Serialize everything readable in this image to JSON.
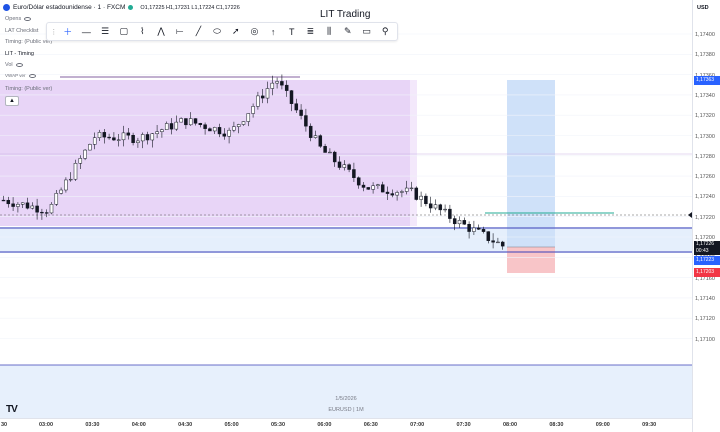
{
  "legend": {
    "symbol": "Euro/Dólar estadounidense · 1 · FXCM",
    "ohlc": "O1,17225 H1,17231 L1,17224 C1,17226"
  },
  "indicators": [
    {
      "label": "Opens"
    },
    {
      "label": "LAT Checklist"
    },
    {
      "label": "Timing: (Public ver)"
    },
    {
      "label": "LIT - Timing"
    },
    {
      "label": "Vol"
    },
    {
      "label": "VWAP ver"
    }
  ],
  "timing_panel_label": "Timing: (Public ver)",
  "collapse_icon": "chevron-up-icon",
  "watermark_title": "LIT Trading",
  "currency": "USD",
  "toolbar": {
    "tools": [
      "grip-icon",
      "crosshair-icon",
      "horizontal-line-icon",
      "grid-icon",
      "rectangle-icon",
      "path-icon",
      "zigzag-icon",
      "horizontal-ray-icon",
      "trend-line-icon",
      "ellipse-icon",
      "arrow-line-icon",
      "circle-target-icon",
      "arrow-up-icon",
      "text-icon",
      "long-position-icon",
      "pattern-icon",
      "brush-icon",
      "comment-icon",
      "pin-icon"
    ]
  },
  "price_axis": {
    "labels": [
      "1,17400",
      "1,17380",
      "1,17360",
      "1,17340",
      "1,17320",
      "1,17300",
      "1,17280",
      "1,17260",
      "1,17240",
      "1,17220",
      "1,17200",
      "1,17180",
      "1,17160",
      "1,17140",
      "1,17120",
      "1,17100"
    ],
    "tags": [
      {
        "text": "1,17363",
        "color": "#2962ff"
      },
      {
        "text": "1,17226",
        "color": "#131722"
      },
      {
        "text": "00:43",
        "color": "#131722"
      },
      {
        "text": "1,17223",
        "color": "#2962ff"
      },
      {
        "text": "1,17203",
        "color": "#f23645"
      }
    ]
  },
  "time_axis": {
    "labels": [
      "30",
      "03:00",
      "03:30",
      "04:00",
      "04:30",
      "05:00",
      "05:30",
      "06:00",
      "06:30",
      "07:00",
      "07:30",
      "08:00",
      "08:30",
      "09:00",
      "09:30"
    ]
  },
  "date_watermark": "1/5/2026",
  "symbol_watermark": "EURUSD | 1M",
  "tv_logo": "TV",
  "colors": {
    "bull": "#131722",
    "bear": "#131722",
    "session_purple": "#e8d5f7",
    "long_blue": "#cfe1f9",
    "stop_red": "#f8c5c8",
    "grid": "#f0f3fa"
  },
  "chart_data": {
    "type": "candlestick",
    "x": [
      "02:30",
      "03:00",
      "03:30",
      "04:00",
      "04:30",
      "05:00",
      "05:30",
      "06:00",
      "06:30",
      "07:00",
      "07:30",
      "08:00"
    ],
    "series": [
      {
        "values": [
          1.17262,
          1.17254,
          1.17312,
          1.17311,
          1.17325,
          1.17315,
          1.17358,
          1.17302,
          1.17272,
          1.17268,
          1.17245,
          1.17226
        ]
      }
    ],
    "ylim": [
      1.1709,
      1.1742
    ],
    "last_price": 1.17226
  }
}
